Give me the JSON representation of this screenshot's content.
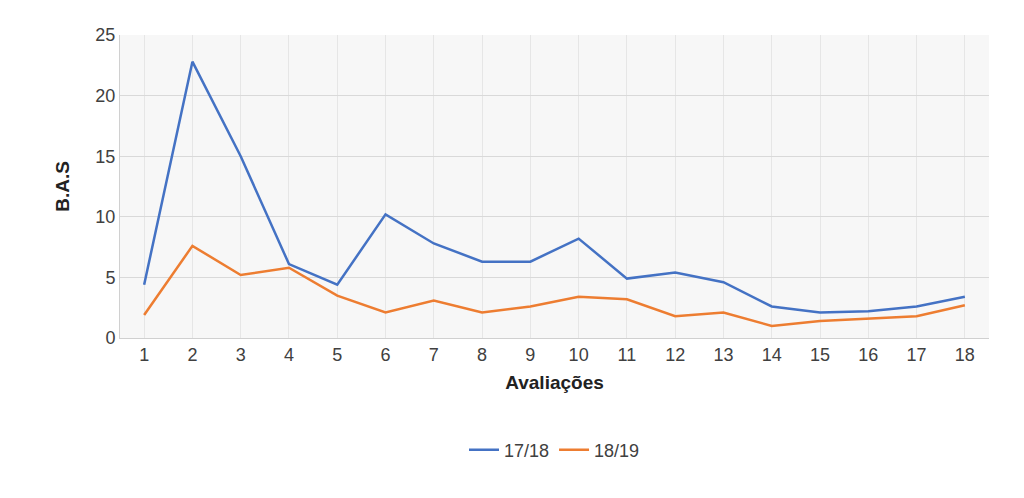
{
  "chart_data": {
    "type": "line",
    "x_label": "Avaliações",
    "y_label": "B.A.S",
    "categories": [
      "1",
      "2",
      "3",
      "4",
      "5",
      "6",
      "7",
      "8",
      "9",
      "10",
      "11",
      "12",
      "13",
      "14",
      "15",
      "16",
      "17",
      "18"
    ],
    "series": [
      {
        "name": "17/18",
        "color": "#4472c4",
        "values": [
          4.4,
          22.8,
          15.0,
          6.1,
          4.4,
          10.2,
          7.8,
          6.3,
          6.3,
          8.2,
          4.9,
          5.4,
          4.6,
          2.6,
          2.1,
          2.2,
          2.6,
          3.4
        ]
      },
      {
        "name": "18/19",
        "color": "#ed7d31",
        "values": [
          1.9,
          7.6,
          5.2,
          5.8,
          3.5,
          2.1,
          3.1,
          2.1,
          2.6,
          3.4,
          3.2,
          1.8,
          2.1,
          1.0,
          1.4,
          1.6,
          1.8,
          2.7
        ]
      }
    ],
    "ylim": [
      0,
      25
    ],
    "yticks": [
      0,
      5,
      10,
      15,
      20,
      25
    ],
    "grid": true,
    "legend": "bottom"
  }
}
